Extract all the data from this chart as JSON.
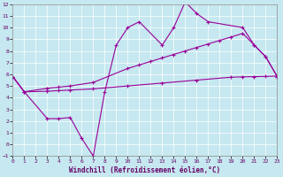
{
  "xlabel": "Windchill (Refroidissement éolien,°C)",
  "bg_color": "#c6e8f0",
  "line_color": "#990099",
  "xlim": [
    0,
    23
  ],
  "ylim": [
    -1,
    12
  ],
  "xticks": [
    0,
    1,
    2,
    3,
    4,
    5,
    6,
    7,
    8,
    9,
    10,
    11,
    12,
    13,
    14,
    15,
    16,
    17,
    18,
    19,
    20,
    21,
    22,
    23
  ],
  "yticks": [
    -1,
    0,
    1,
    2,
    3,
    4,
    5,
    6,
    7,
    8,
    9,
    10,
    11,
    12
  ],
  "line1_x": [
    0,
    1,
    3,
    4,
    5,
    6,
    7,
    8,
    9,
    10,
    11,
    13,
    14,
    15,
    16,
    17,
    20,
    21,
    22,
    23
  ],
  "line1_y": [
    5.8,
    4.5,
    2.2,
    2.2,
    2.3,
    0.5,
    -1.0,
    4.5,
    8.5,
    10.0,
    10.5,
    8.5,
    10.0,
    12.2,
    11.2,
    10.5,
    10.0,
    8.5,
    7.5,
    5.8
  ],
  "line2_x": [
    0,
    1,
    3,
    4,
    5,
    7,
    10,
    11,
    12,
    13,
    14,
    15,
    16,
    17,
    18,
    19,
    20,
    21,
    22,
    23
  ],
  "line2_y": [
    5.8,
    4.5,
    4.8,
    4.9,
    5.0,
    5.3,
    6.5,
    6.8,
    7.1,
    7.4,
    7.7,
    8.0,
    8.3,
    8.6,
    8.9,
    9.2,
    9.5,
    8.5,
    7.5,
    5.8
  ],
  "line3_x": [
    0,
    1,
    3,
    4,
    5,
    7,
    10,
    13,
    16,
    19,
    20,
    21,
    22,
    23
  ],
  "line3_y": [
    5.8,
    4.5,
    4.55,
    4.6,
    4.65,
    4.75,
    5.0,
    5.25,
    5.5,
    5.75,
    5.78,
    5.8,
    5.82,
    5.85
  ]
}
